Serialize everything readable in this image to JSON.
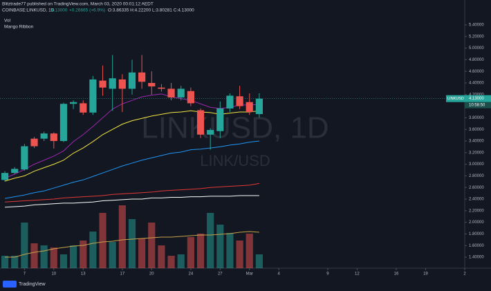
{
  "header": {
    "publisher": "Blitztrade77 published on TradingView.com, March 03, 2020 00:01:12 AEDT",
    "symbol": "COINBASE:LINKUSD, 1D",
    "last": "4.13000",
    "change": "+0.26665 (+6.9%)",
    "ohlc": "O:3.86335 H:4.22200 L:3.80281 C:4.13000",
    "indicators": [
      "Vol",
      "Mango Ribbon"
    ],
    "watermark": "LINKUSD, 1D",
    "watermark_sub": "LINK/USD",
    "price_tag": {
      "symbol": "LINKUSD",
      "price": "4.13000",
      "countdown": "10:58:50"
    },
    "footer": "TradingView"
  },
  "chart_data": {
    "type": "candlestick",
    "x": [
      36,
      37,
      38,
      39,
      40,
      41,
      42,
      43,
      44,
      45,
      46,
      47,
      48,
      49,
      50,
      51,
      52,
      53,
      54,
      55,
      56,
      57,
      58,
      59,
      60,
      61,
      62
    ],
    "open": [
      2.73,
      2.85,
      2.91,
      3.44,
      3.44,
      3.53,
      3.4,
      4.04,
      4.05,
      3.89,
      4.44,
      4.3,
      4.46,
      4.3,
      4.58,
      4.4,
      4.32,
      4.3,
      4.15,
      4.26,
      3.93,
      3.51,
      3.57,
      3.96,
      4.17,
      4.07,
      3.86335
    ],
    "high": [
      2.88,
      2.95,
      3.35,
      3.47,
      3.56,
      3.55,
      4.06,
      4.1,
      4.1,
      4.52,
      4.7,
      4.88,
      4.55,
      4.8,
      4.88,
      4.6,
      4.38,
      4.4,
      4.35,
      4.32,
      3.96,
      3.62,
      4.08,
      4.22,
      4.35,
      4.22,
      4.222
    ],
    "low": [
      2.7,
      2.83,
      2.89,
      3.28,
      3.4,
      3.27,
      3.38,
      3.95,
      3.85,
      3.85,
      4.18,
      3.92,
      3.9,
      4.2,
      4.3,
      4.2,
      4.25,
      4.1,
      4.1,
      4.0,
      3.45,
      3.25,
      3.45,
      3.9,
      3.95,
      3.85,
      3.80281
    ],
    "close": [
      2.85,
      2.92,
      3.31,
      3.31,
      3.53,
      3.4,
      4.04,
      4.07,
      3.89,
      4.46,
      4.32,
      4.48,
      4.3,
      4.58,
      4.42,
      4.34,
      4.3,
      4.15,
      4.3,
      4.05,
      3.51,
      3.59,
      3.96,
      4.18,
      4.0,
      3.9,
      4.13
    ],
    "up_color": "#26a69a",
    "down_color": "#ef5350",
    "series": [
      {
        "color": "#9c27b0",
        "values": [
          2.76,
          2.83,
          2.91,
          3.0,
          3.07,
          3.14,
          3.23,
          3.39,
          3.51,
          3.65,
          3.8,
          3.95,
          4.04,
          4.1,
          4.16,
          4.19,
          4.21,
          4.16,
          4.13,
          4.1,
          4.04,
          3.98,
          3.96,
          3.98,
          4.02,
          4.02,
          4.03
        ]
      },
      {
        "color": "#f5e642",
        "values": [
          2.71,
          2.76,
          2.8,
          2.88,
          2.94,
          3.0,
          3.07,
          3.19,
          3.28,
          3.39,
          3.51,
          3.6,
          3.69,
          3.75,
          3.79,
          3.83,
          3.86,
          3.89,
          3.9,
          3.92,
          3.9,
          3.89,
          3.86,
          3.88,
          3.9,
          3.9,
          3.92
        ]
      },
      {
        "color": "#2196f3",
        "values": [
          2.41,
          2.44,
          2.47,
          2.51,
          2.54,
          2.59,
          2.64,
          2.69,
          2.73,
          2.79,
          2.85,
          2.91,
          2.97,
          3.02,
          3.07,
          3.11,
          3.15,
          3.19,
          3.21,
          3.25,
          3.26,
          3.28,
          3.3,
          3.33,
          3.35,
          3.38,
          3.4
        ]
      },
      {
        "color": "#e53935",
        "values": [
          2.35,
          2.36,
          2.37,
          2.38,
          2.39,
          2.4,
          2.42,
          2.43,
          2.44,
          2.45,
          2.46,
          2.48,
          2.49,
          2.5,
          2.51,
          2.52,
          2.54,
          2.55,
          2.56,
          2.57,
          2.58,
          2.6,
          2.61,
          2.62,
          2.63,
          2.64,
          2.67
        ]
      },
      {
        "color": "#ffffff",
        "values": [
          2.26,
          2.27,
          2.28,
          2.3,
          2.31,
          2.32,
          2.33,
          2.33,
          2.34,
          2.35,
          2.37,
          2.38,
          2.39,
          2.4,
          2.4,
          2.42,
          2.42,
          2.43,
          2.43,
          2.44,
          2.44,
          2.45,
          2.45,
          2.45,
          2.46,
          2.46,
          2.46
        ]
      }
    ],
    "volume": [
      18,
      18,
      66,
      36,
      33,
      30,
      20,
      33,
      40,
      53,
      80,
      38,
      91,
      71,
      43,
      66,
      33,
      18,
      20,
      45,
      50,
      80,
      63,
      51,
      40,
      50,
      20
    ],
    "volume_ma": {
      "color": "#c9a24a",
      "values": [
        16,
        16,
        20,
        23,
        25,
        28,
        30,
        32,
        33,
        36,
        38,
        39,
        41,
        42,
        43,
        44,
        45,
        45,
        46,
        47,
        48,
        48,
        49,
        50,
        52,
        53,
        52
      ]
    },
    "xlim": [
      35.5,
      83
    ],
    "xticks": [
      {
        "value": 38,
        "label": "7"
      },
      {
        "value": 41,
        "label": "10"
      },
      {
        "value": 44,
        "label": "13"
      },
      {
        "value": 48,
        "label": "17"
      },
      {
        "value": 51,
        "label": "20"
      },
      {
        "value": 55,
        "label": "24"
      },
      {
        "value": 58,
        "label": "27"
      },
      {
        "value": 61,
        "label": "Mar"
      },
      {
        "value": 64,
        "label": "4"
      },
      {
        "value": 69,
        "label": "9"
      },
      {
        "value": 72,
        "label": "12"
      },
      {
        "value": 76,
        "label": "16"
      },
      {
        "value": 79,
        "label": "19"
      },
      {
        "value": 83,
        "label": "2"
      }
    ],
    "ylim": [
      1.21,
      5.59
    ],
    "yticks": [
      {
        "value": 1.4,
        "label": "1.40000"
      },
      {
        "value": 1.6,
        "label": "1.60000"
      },
      {
        "value": 1.8,
        "label": "1.80000"
      },
      {
        "value": 2.0,
        "label": "2.00000"
      },
      {
        "value": 2.2,
        "label": "2.20000"
      },
      {
        "value": 2.4,
        "label": "2.40000"
      },
      {
        "value": 2.6,
        "label": "2.60000"
      },
      {
        "value": 2.8,
        "label": "2.80000"
      },
      {
        "value": 3.0,
        "label": "3.00000"
      },
      {
        "value": 3.2,
        "label": "3.20000"
      },
      {
        "value": 3.4,
        "label": "3.40000"
      },
      {
        "value": 3.6,
        "label": "3.60000"
      },
      {
        "value": 3.8,
        "label": "3.80000"
      },
      {
        "value": 4.0,
        "label": "4.00000"
      },
      {
        "value": 4.2,
        "label": "4.20000"
      },
      {
        "value": 4.4,
        "label": "4.40000"
      },
      {
        "value": 4.6,
        "label": "4.60000"
      },
      {
        "value": 4.8,
        "label": "4.80000"
      },
      {
        "value": 5.0,
        "label": "5.00000"
      },
      {
        "value": 5.2,
        "label": "5.20000"
      },
      {
        "value": 5.4,
        "label": "5.40000"
      }
    ]
  }
}
